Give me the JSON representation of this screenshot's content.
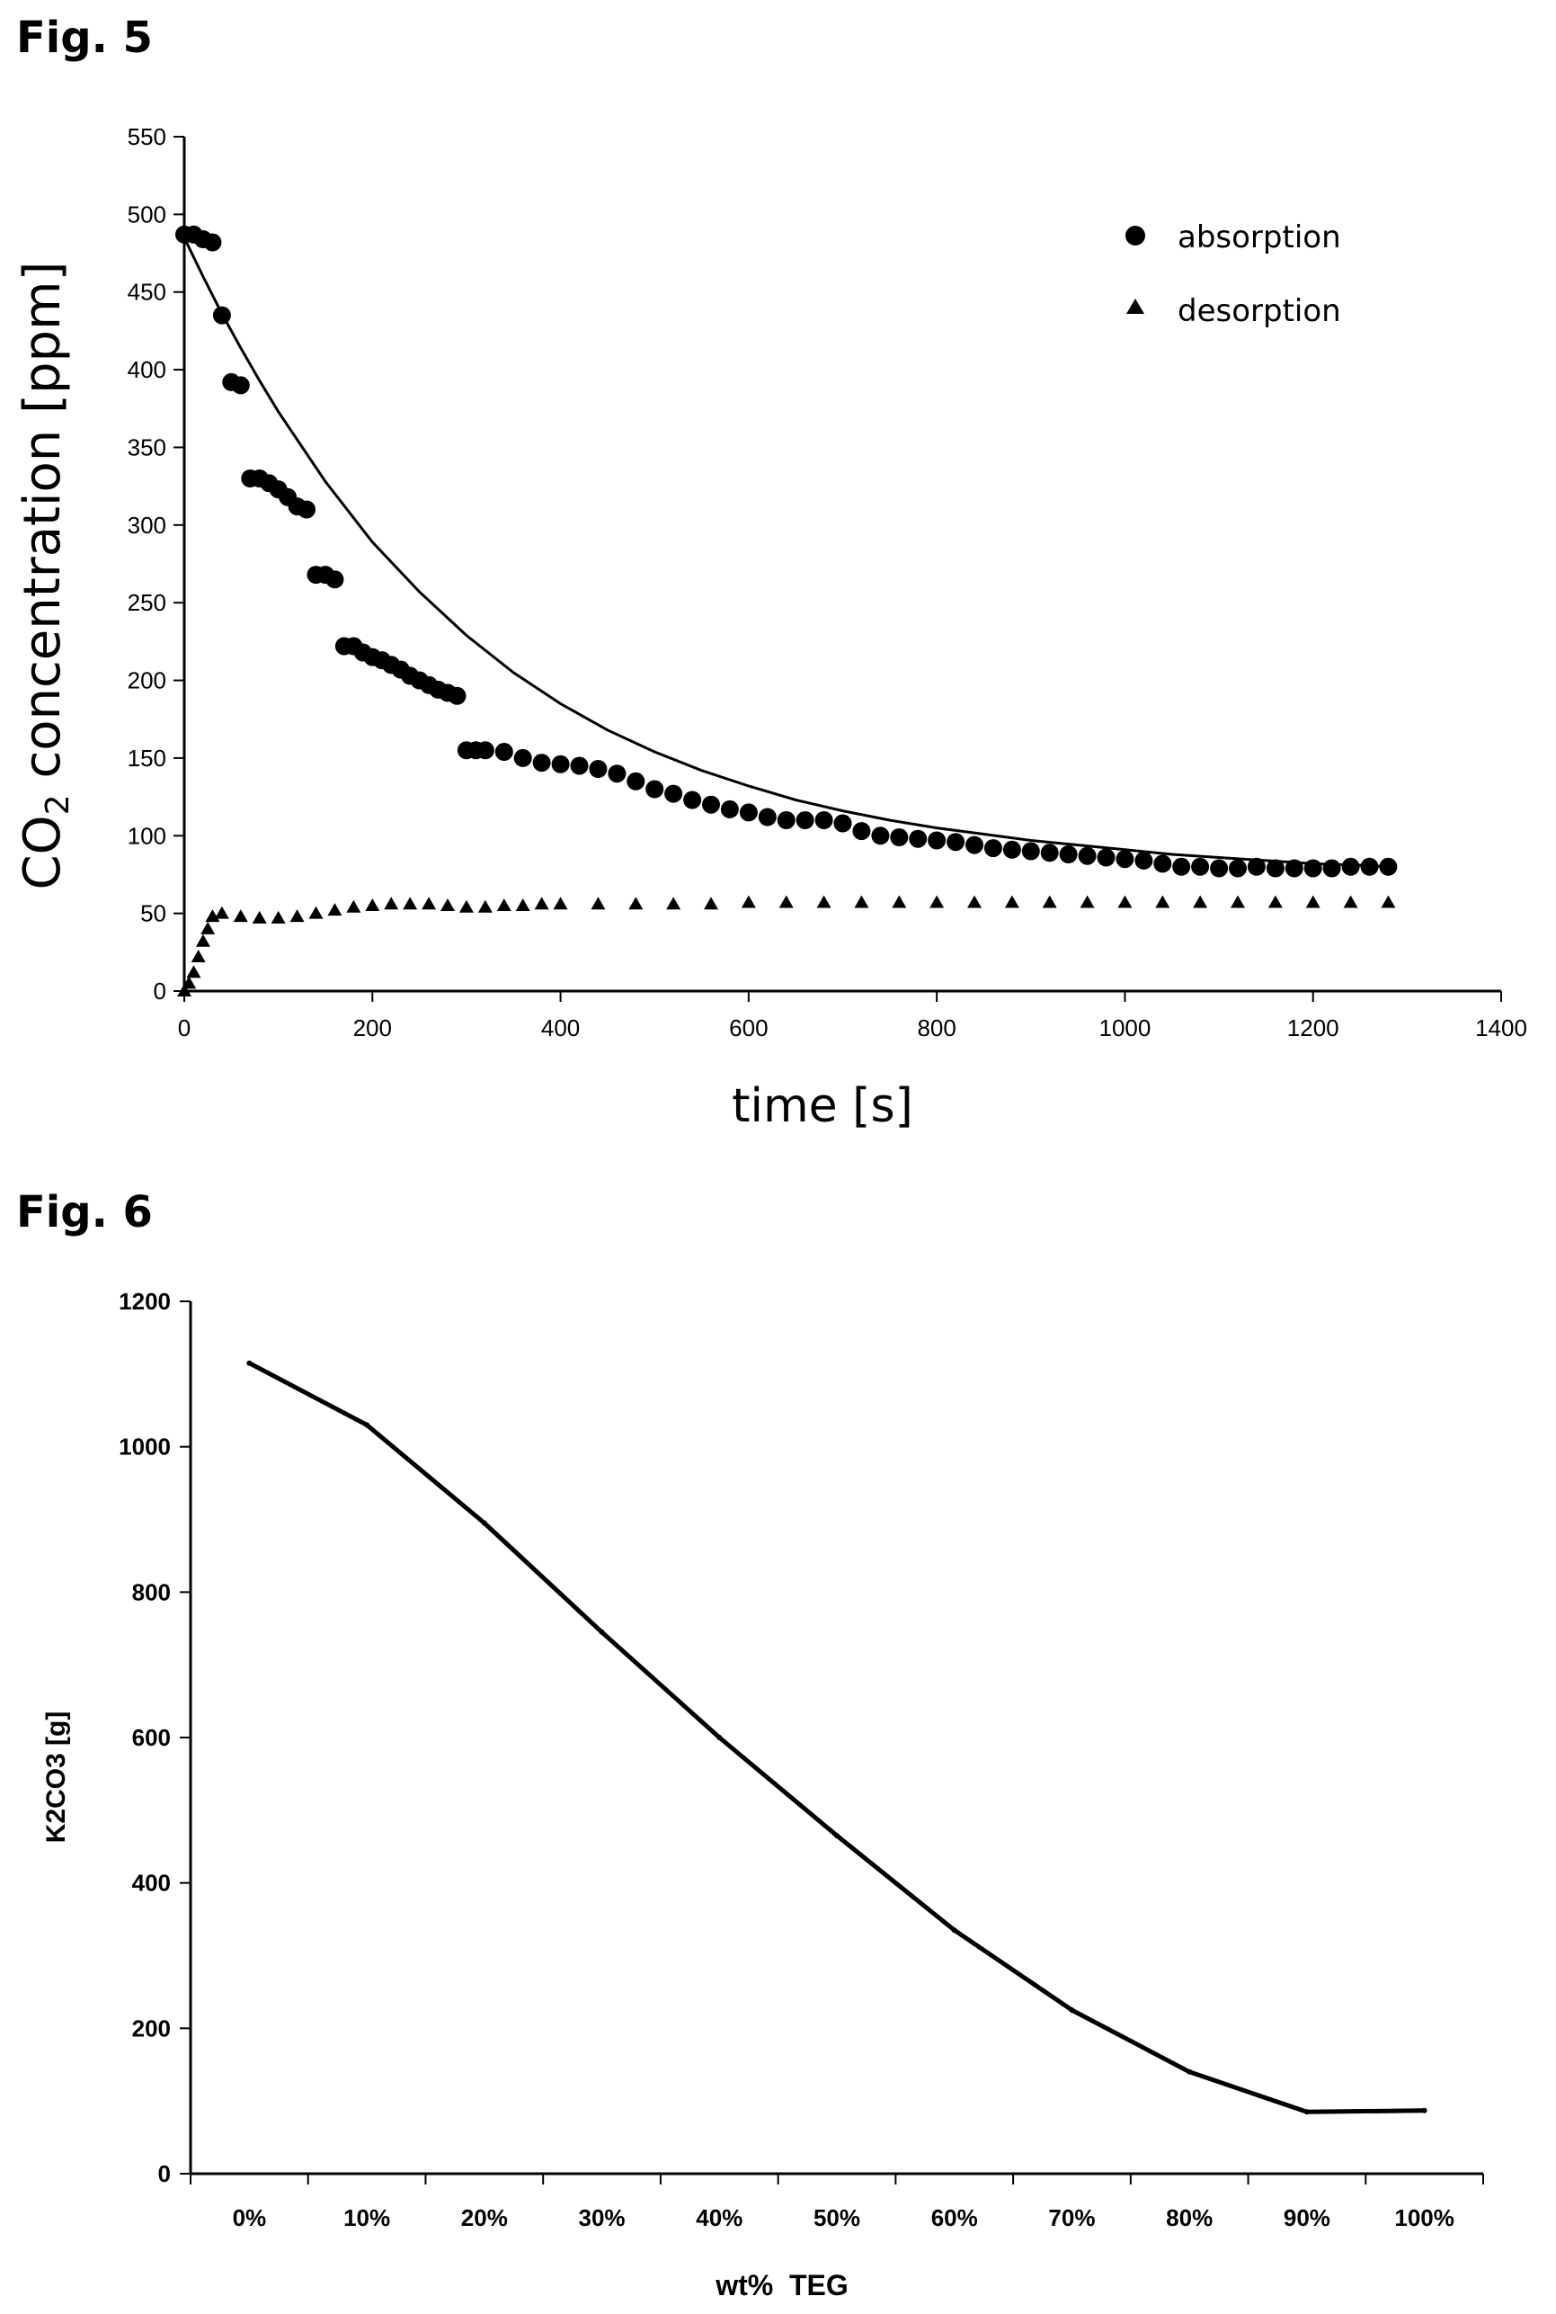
{
  "figures": {
    "fig5_label": "Fig. 5",
    "fig6_label": "Fig. 6"
  },
  "chart_data": [
    {
      "type": "scatter",
      "ylabel_main": "CO",
      "ylabel_sub": "2",
      "ylabel_rest": " concentration  [ppm]",
      "xlabel": "time  [s]",
      "xlim": [
        0,
        1400
      ],
      "ylim": [
        0,
        550
      ],
      "xticks": [
        "0",
        "200",
        "400",
        "600",
        "800",
        "1000",
        "1200",
        "1400"
      ],
      "yticks": [
        "0",
        "50",
        "100",
        "150",
        "200",
        "250",
        "300",
        "350",
        "400",
        "450",
        "500",
        "550"
      ],
      "grid": false,
      "legend_position": "top-right",
      "marker_color": "#000000",
      "series": [
        {
          "name": "absorption",
          "marker": "circle",
          "x": [
            0,
            10,
            20,
            30,
            40,
            50,
            60,
            70,
            80,
            90,
            100,
            110,
            120,
            130,
            140,
            150,
            160,
            170,
            180,
            190,
            200,
            210,
            220,
            230,
            240,
            250,
            260,
            270,
            280,
            290,
            300,
            310,
            320,
            340,
            360,
            380,
            400,
            420,
            440,
            460,
            480,
            500,
            520,
            540,
            560,
            580,
            600,
            620,
            640,
            660,
            680,
            700,
            720,
            740,
            760,
            780,
            800,
            820,
            840,
            860,
            880,
            900,
            920,
            940,
            960,
            980,
            1000,
            1020,
            1040,
            1060,
            1080,
            1100,
            1120,
            1140,
            1160,
            1180,
            1200,
            1220,
            1240,
            1260,
            1280
          ],
          "y": [
            487,
            487,
            484,
            482,
            435,
            392,
            390,
            330,
            330,
            327,
            323,
            318,
            312,
            310,
            268,
            268,
            265,
            222,
            222,
            218,
            215,
            213,
            210,
            207,
            203,
            200,
            197,
            194,
            192,
            190,
            155,
            155,
            155,
            154,
            150,
            147,
            146,
            145,
            143,
            140,
            135,
            130,
            127,
            123,
            120,
            117,
            115,
            112,
            110,
            110,
            110,
            108,
            103,
            100,
            99,
            98,
            97,
            96,
            94,
            92,
            91,
            90,
            89,
            88,
            87,
            86,
            85,
            84,
            82,
            80,
            80,
            79,
            79,
            80,
            79,
            79,
            79,
            79,
            80,
            80,
            80
          ]
        },
        {
          "name": "desorption",
          "marker": "triangle",
          "x": [
            0,
            5,
            10,
            15,
            20,
            25,
            30,
            40,
            60,
            80,
            100,
            120,
            140,
            160,
            180,
            200,
            220,
            240,
            260,
            280,
            300,
            320,
            340,
            360,
            380,
            400,
            440,
            480,
            520,
            560,
            600,
            640,
            680,
            720,
            760,
            800,
            840,
            880,
            920,
            960,
            1000,
            1040,
            1080,
            1120,
            1160,
            1200,
            1240,
            1280
          ],
          "y": [
            0,
            5,
            12,
            22,
            32,
            40,
            48,
            50,
            48,
            47,
            47,
            48,
            50,
            52,
            54,
            55,
            56,
            56,
            56,
            55,
            54,
            54,
            55,
            55,
            56,
            56,
            56,
            56,
            56,
            56,
            57,
            57,
            57,
            57,
            57,
            57,
            57,
            57,
            57,
            57,
            57,
            57,
            57,
            57,
            57,
            57,
            57,
            57
          ]
        }
      ],
      "fit_curve": {
        "x": [
          0,
          20,
          40,
          60,
          80,
          100,
          150,
          200,
          250,
          300,
          350,
          400,
          450,
          500,
          550,
          600,
          650,
          700,
          750,
          800,
          850,
          900,
          950,
          1000,
          1050,
          1100,
          1150,
          1200,
          1250,
          1280
        ],
        "y": [
          485,
          460,
          436,
          414,
          393,
          373,
          328,
          289,
          257,
          229,
          205,
          185,
          168,
          154,
          142,
          132,
          123,
          116,
          110,
          105,
          101,
          97,
          94,
          91,
          88,
          86,
          84,
          82,
          81,
          80
        ]
      }
    },
    {
      "type": "line",
      "ylabel": "K2CO3 [g]",
      "xlabel": "wt%  TEG",
      "categories": [
        "0%",
        "10%",
        "20%",
        "30%",
        "40%",
        "50%",
        "60%",
        "70%",
        "80%",
        "90%",
        "100%"
      ],
      "ylim": [
        0,
        1200
      ],
      "yticks": [
        "0",
        "200",
        "400",
        "600",
        "800",
        "1000",
        "1200"
      ],
      "grid": false,
      "line_color": "#000000",
      "series": [
        {
          "values": [
            1115,
            1030,
            895,
            745,
            600,
            465,
            335,
            225,
            140,
            85,
            87
          ]
        }
      ]
    }
  ]
}
